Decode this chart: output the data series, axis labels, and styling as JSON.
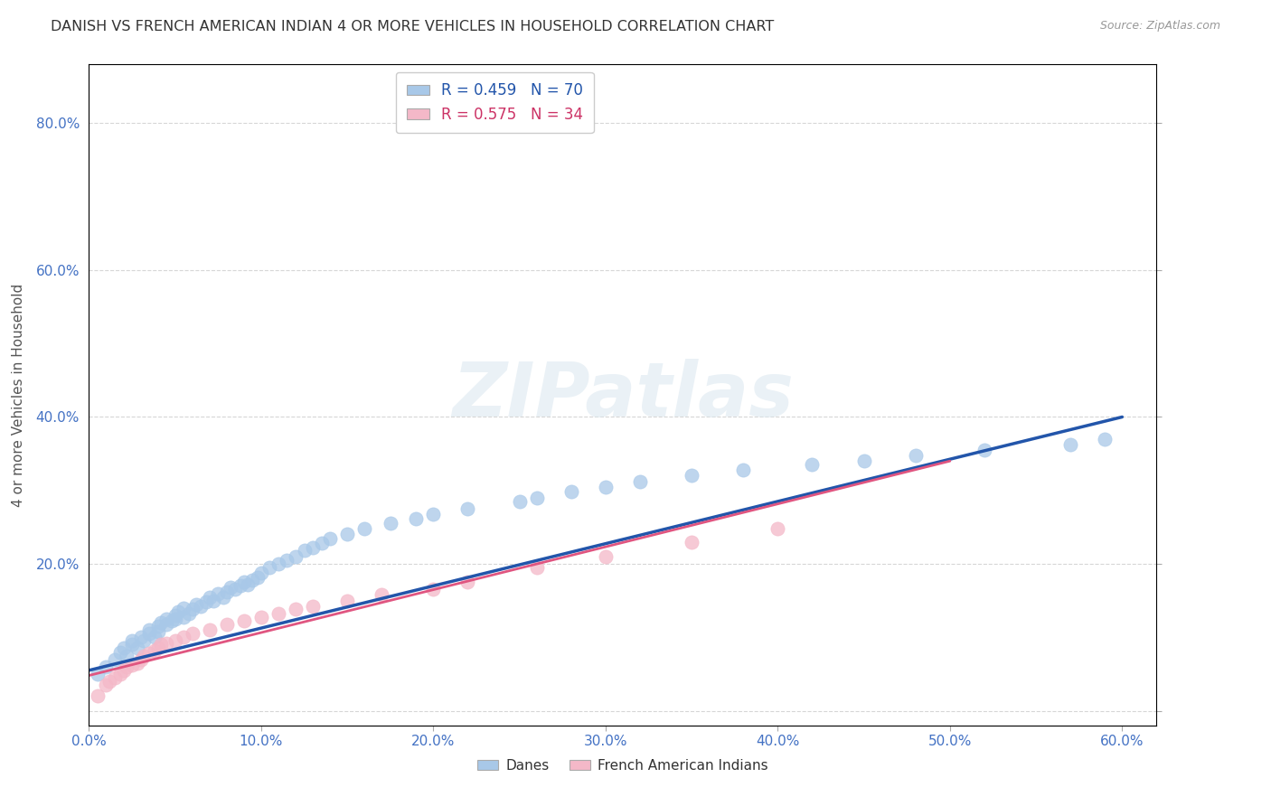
{
  "title": "DANISH VS FRENCH AMERICAN INDIAN 4 OR MORE VEHICLES IN HOUSEHOLD CORRELATION CHART",
  "source": "Source: ZipAtlas.com",
  "ylabel": "4 or more Vehicles in Household",
  "xlim": [
    0.0,
    0.62
  ],
  "ylim": [
    -0.02,
    0.88
  ],
  "ytick_vals": [
    0.0,
    0.2,
    0.4,
    0.6,
    0.8
  ],
  "ytick_labels": [
    "",
    "20.0%",
    "40.0%",
    "60.0%",
    "80.0%"
  ],
  "xtick_vals": [
    0.0,
    0.1,
    0.2,
    0.3,
    0.4,
    0.5,
    0.6
  ],
  "xtick_labels": [
    "0.0%",
    "10.0%",
    "20.0%",
    "30.0%",
    "40.0%",
    "50.0%",
    "60.0%"
  ],
  "legend_text_blue": "R = 0.459   N = 70",
  "legend_text_pink": "R = 0.575   N = 34",
  "blue_scatter_color": "#a8c8e8",
  "pink_scatter_color": "#f4b8c8",
  "blue_line_color": "#2255aa",
  "pink_line_color": "#e05580",
  "tick_color": "#4472c4",
  "watermark": "ZIPatlas",
  "danes_label": "Danes",
  "french_label": "French American Indians",
  "blue_scatter_x": [
    0.005,
    0.01,
    0.015,
    0.018,
    0.02,
    0.022,
    0.025,
    0.025,
    0.028,
    0.03,
    0.032,
    0.035,
    0.035,
    0.038,
    0.04,
    0.04,
    0.042,
    0.045,
    0.045,
    0.048,
    0.05,
    0.05,
    0.052,
    0.055,
    0.055,
    0.058,
    0.06,
    0.062,
    0.065,
    0.068,
    0.07,
    0.072,
    0.075,
    0.078,
    0.08,
    0.082,
    0.085,
    0.088,
    0.09,
    0.092,
    0.095,
    0.098,
    0.1,
    0.105,
    0.11,
    0.115,
    0.12,
    0.125,
    0.13,
    0.135,
    0.14,
    0.15,
    0.16,
    0.175,
    0.19,
    0.2,
    0.22,
    0.25,
    0.26,
    0.28,
    0.3,
    0.32,
    0.35,
    0.38,
    0.42,
    0.45,
    0.48,
    0.52,
    0.57,
    0.59
  ],
  "blue_scatter_y": [
    0.05,
    0.06,
    0.07,
    0.08,
    0.085,
    0.075,
    0.09,
    0.095,
    0.085,
    0.1,
    0.095,
    0.105,
    0.11,
    0.1,
    0.115,
    0.108,
    0.12,
    0.118,
    0.125,
    0.122,
    0.13,
    0.125,
    0.135,
    0.128,
    0.14,
    0.132,
    0.138,
    0.145,
    0.142,
    0.148,
    0.155,
    0.15,
    0.16,
    0.155,
    0.162,
    0.168,
    0.165,
    0.17,
    0.175,
    0.172,
    0.178,
    0.182,
    0.188,
    0.195,
    0.2,
    0.205,
    0.21,
    0.218,
    0.222,
    0.228,
    0.235,
    0.24,
    0.248,
    0.255,
    0.262,
    0.268,
    0.275,
    0.285,
    0.29,
    0.298,
    0.305,
    0.312,
    0.32,
    0.328,
    0.335,
    0.34,
    0.348,
    0.355,
    0.362,
    0.37
  ],
  "pink_scatter_x": [
    0.005,
    0.01,
    0.012,
    0.015,
    0.018,
    0.02,
    0.022,
    0.025,
    0.028,
    0.03,
    0.032,
    0.035,
    0.038,
    0.04,
    0.042,
    0.045,
    0.05,
    0.055,
    0.06,
    0.07,
    0.08,
    0.09,
    0.1,
    0.11,
    0.12,
    0.13,
    0.15,
    0.17,
    0.2,
    0.22,
    0.26,
    0.3,
    0.35,
    0.4
  ],
  "pink_scatter_y": [
    0.02,
    0.035,
    0.04,
    0.045,
    0.05,
    0.055,
    0.06,
    0.062,
    0.065,
    0.07,
    0.075,
    0.078,
    0.082,
    0.085,
    0.09,
    0.092,
    0.095,
    0.1,
    0.105,
    0.11,
    0.118,
    0.122,
    0.128,
    0.132,
    0.138,
    0.142,
    0.15,
    0.158,
    0.165,
    0.175,
    0.195,
    0.21,
    0.23,
    0.248
  ],
  "blue_line_x": [
    0.0,
    0.6
  ],
  "blue_line_y_start": 0.055,
  "blue_line_y_end": 0.4,
  "pink_line_x": [
    0.0,
    0.5
  ],
  "pink_line_y_start": 0.048,
  "pink_line_y_end": 0.34
}
